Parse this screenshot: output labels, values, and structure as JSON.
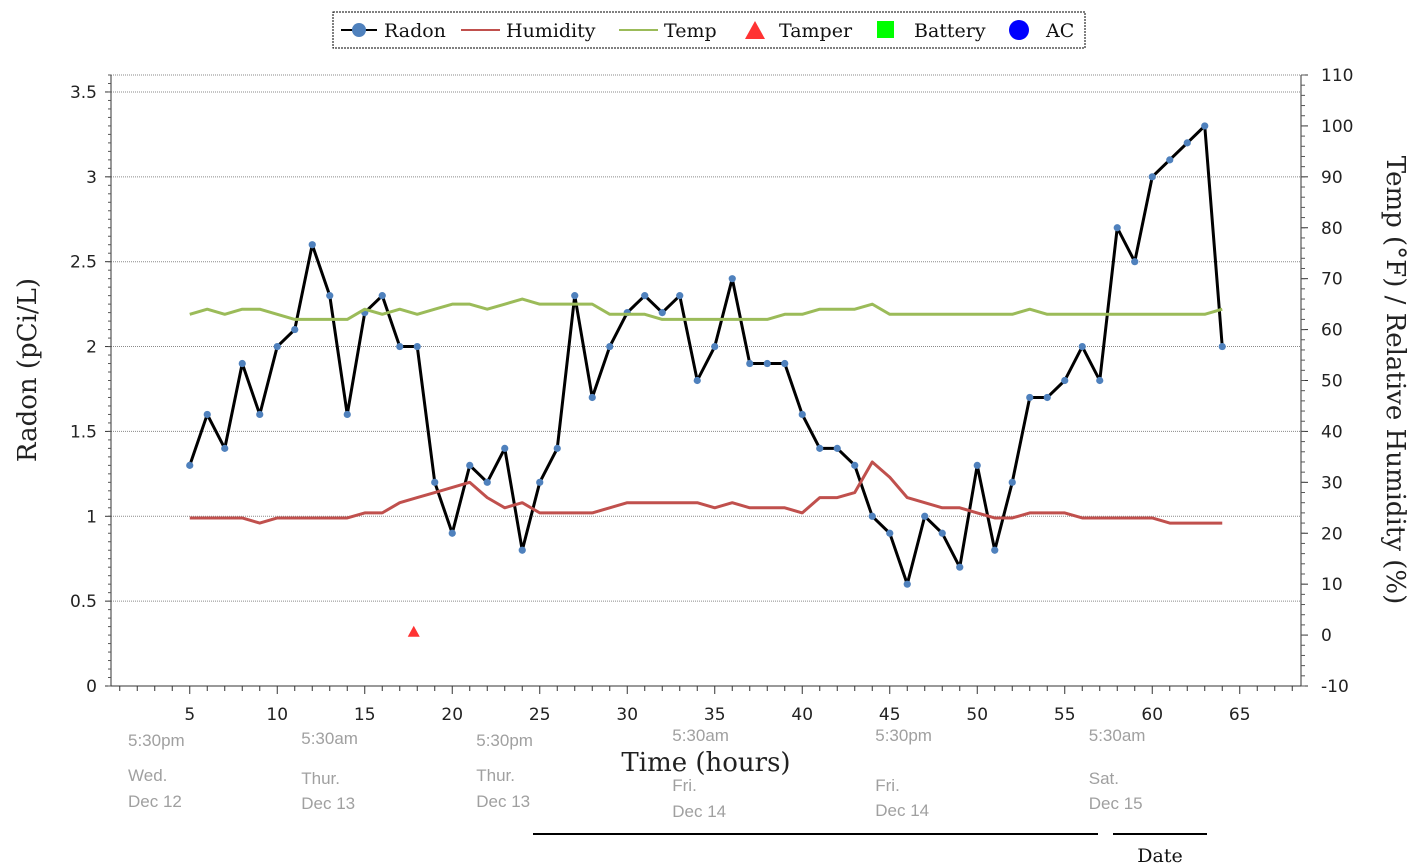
{
  "chart_data": {
    "type": "line",
    "xlabel": "Time (hours)",
    "ylabel_left": "Radon (pCi/L)",
    "ylabel_right": "Temp (°F) / Relative Humidity (%)",
    "xlim": [
      0.5,
      68.5
    ],
    "ylim_left": [
      0,
      3.6
    ],
    "ylim_right": [
      -10,
      110
    ],
    "x_ticks": [
      5,
      10,
      15,
      20,
      25,
      30,
      35,
      40,
      45,
      50,
      55,
      60,
      65
    ],
    "y_ticks_left": [
      0,
      0.5,
      1,
      1.5,
      2,
      2.5,
      3,
      3.5
    ],
    "y_tick_labels_left": [
      "0",
      "0.5",
      "1",
      "1.5",
      "2",
      "2.5",
      "3",
      "3.5"
    ],
    "y_ticks_right": [
      -10,
      0,
      10,
      20,
      30,
      40,
      50,
      60,
      70,
      80,
      90,
      100,
      110
    ],
    "legend": {
      "placement": "top-center",
      "entries": [
        "Radon",
        "Humidity",
        "Temp",
        "Tamper",
        "Battery",
        "AC"
      ]
    },
    "series": [
      {
        "name": "Radon",
        "axis": "left",
        "color": "#000000",
        "marker_color": "#4f81bd",
        "x": [
          5,
          6,
          7,
          8,
          9,
          10,
          11,
          12,
          13,
          14,
          15,
          16,
          17,
          18,
          19,
          20,
          21,
          22,
          23,
          24,
          25,
          26,
          27,
          28,
          29,
          30,
          31,
          32,
          33,
          34,
          35,
          36,
          37,
          38,
          39,
          40,
          41,
          42,
          43,
          44,
          45,
          46,
          47,
          48,
          49,
          50,
          51,
          52,
          53,
          54,
          55,
          56,
          57,
          58,
          59,
          60,
          61,
          62,
          63,
          64
        ],
        "values": [
          1.3,
          1.6,
          1.4,
          1.9,
          1.6,
          2.0,
          2.1,
          2.6,
          2.3,
          1.6,
          2.2,
          2.3,
          2.0,
          2.0,
          1.2,
          0.9,
          1.3,
          1.2,
          1.4,
          0.8,
          1.2,
          1.4,
          2.3,
          1.7,
          2.0,
          2.2,
          2.3,
          2.2,
          2.3,
          1.8,
          2.0,
          2.4,
          1.9,
          1.9,
          1.9,
          1.6,
          1.4,
          1.4,
          1.3,
          1.0,
          0.9,
          0.6,
          1.0,
          0.9,
          0.7,
          1.3,
          0.8,
          1.2,
          1.7,
          1.7,
          1.8,
          2.0,
          1.8,
          2.7,
          2.5,
          3.0,
          3.1,
          3.2,
          3.3,
          2.0
        ]
      },
      {
        "name": "Humidity",
        "axis": "right",
        "color": "#c0504d",
        "x": [
          5,
          6,
          7,
          8,
          9,
          10,
          11,
          12,
          13,
          14,
          15,
          16,
          17,
          18,
          19,
          20,
          21,
          22,
          23,
          24,
          25,
          26,
          27,
          28,
          29,
          30,
          31,
          32,
          33,
          34,
          35,
          36,
          37,
          38,
          39,
          40,
          41,
          42,
          43,
          44,
          45,
          46,
          47,
          48,
          49,
          50,
          51,
          52,
          53,
          54,
          55,
          56,
          57,
          58,
          59,
          60,
          61,
          62,
          63,
          64
        ],
        "values": [
          23,
          23,
          23,
          23,
          22,
          23,
          23,
          23,
          23,
          23,
          24,
          24,
          26,
          27,
          28,
          29,
          30,
          27,
          25,
          26,
          24,
          24,
          24,
          24,
          25,
          26,
          26,
          26,
          26,
          26,
          25,
          26,
          25,
          25,
          25,
          24,
          27,
          27,
          28,
          34,
          31,
          27,
          26,
          25,
          25,
          24,
          23,
          23,
          24,
          24,
          24,
          23,
          23,
          23,
          23,
          23,
          22,
          22,
          22,
          22
        ]
      },
      {
        "name": "Temp",
        "axis": "right",
        "color": "#9bbb59",
        "x": [
          5,
          6,
          7,
          8,
          9,
          10,
          11,
          12,
          13,
          14,
          15,
          16,
          17,
          18,
          19,
          20,
          21,
          22,
          23,
          24,
          25,
          26,
          27,
          28,
          29,
          30,
          31,
          32,
          33,
          34,
          35,
          36,
          37,
          38,
          39,
          40,
          41,
          42,
          43,
          44,
          45,
          46,
          47,
          48,
          49,
          50,
          51,
          52,
          53,
          54,
          55,
          56,
          57,
          58,
          59,
          60,
          61,
          62,
          63,
          64
        ],
        "values": [
          63,
          64,
          63,
          64,
          64,
          63,
          62,
          62,
          62,
          62,
          64,
          63,
          64,
          63,
          64,
          65,
          65,
          64,
          65,
          66,
          65,
          65,
          65,
          65,
          63,
          63,
          63,
          62,
          62,
          62,
          62,
          62,
          62,
          62,
          63,
          63,
          64,
          64,
          64,
          65,
          63,
          63,
          63,
          63,
          63,
          63,
          63,
          63,
          64,
          63,
          63,
          63,
          63,
          63,
          63,
          63,
          63,
          63,
          63,
          64
        ]
      },
      {
        "name": "Tamper",
        "axis": "left",
        "type": "marker",
        "color": "#ff3333",
        "x": [
          17.8
        ],
        "values": [
          0.32
        ]
      }
    ],
    "date_annotations": [
      {
        "x": 4.9,
        "time": "5:30pm",
        "day": "Wed.",
        "date": "Dec 12"
      },
      {
        "x": 14.8,
        "time": "5:30am",
        "day": "Thur.",
        "date": "Dec 13"
      },
      {
        "x": 24.8,
        "time": "5:30pm",
        "day": "Thur.",
        "date": "Dec 13"
      },
      {
        "x": 36.0,
        "time": "5:30am",
        "day": "Fri.",
        "date": "Dec 14"
      },
      {
        "x": 47.6,
        "time": "5:30pm",
        "day": "Fri.",
        "date": "Dec 14"
      },
      {
        "x": 59.8,
        "time": "5:30am",
        "day": "Sat.",
        "date": "Dec 15"
      }
    ],
    "date_axis_label": "Date"
  }
}
